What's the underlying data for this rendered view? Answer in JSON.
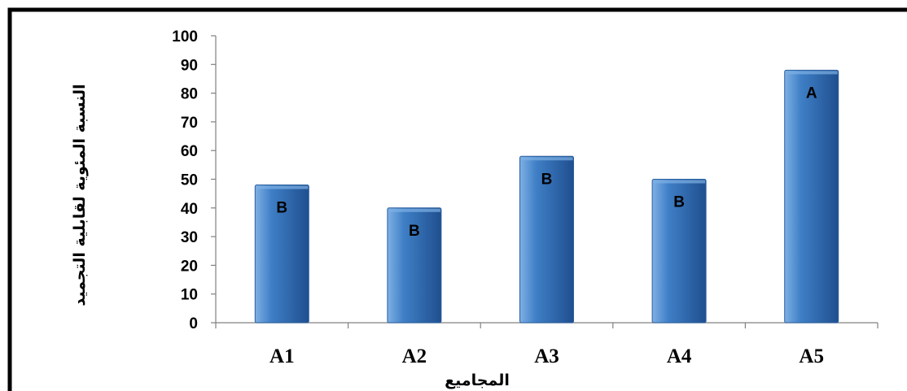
{
  "chart_data": {
    "type": "bar",
    "title": "",
    "xlabel": "المجاميع",
    "ylabel": "النسبة المئوية لقابلية التجميد",
    "categories": [
      "A1",
      "A2",
      "A3",
      "A4",
      "A5"
    ],
    "values": [
      48,
      40,
      58,
      50,
      88
    ],
    "bar_labels": [
      "B",
      "B",
      "B",
      "B",
      "A"
    ],
    "ylim": [
      0,
      100
    ],
    "yticks": [
      0,
      10,
      20,
      30,
      40,
      50,
      60,
      70,
      80,
      90,
      100
    ],
    "grid": false,
    "legend": "none",
    "colors": {
      "bar": "#3f7fc6",
      "bar_light": "#7fb0e4",
      "bar_dark": "#1f4f8f",
      "frame": "#000000"
    }
  }
}
